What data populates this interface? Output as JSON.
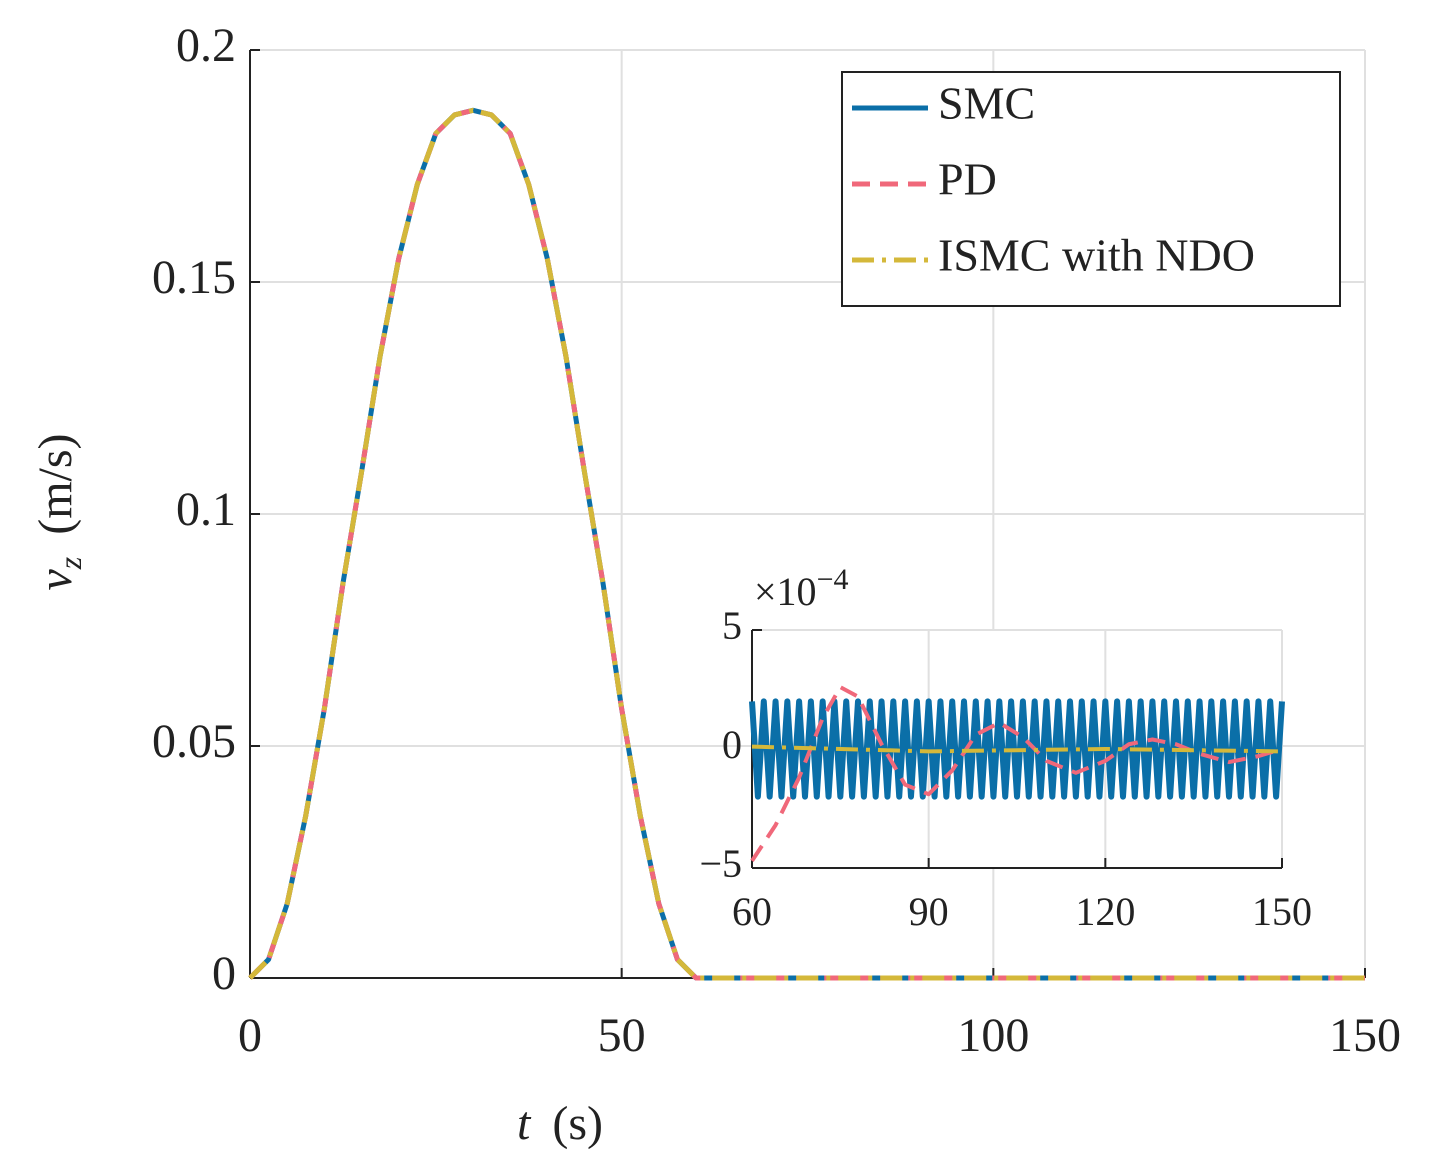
{
  "chart_data": [
    {
      "type": "line",
      "xlabel": {
        "symbol": "t",
        "unit": "(s)"
      },
      "ylabel": {
        "symbol": "v",
        "subscript": "z",
        "unit": "(m/s)"
      },
      "x": [
        0,
        2.5,
        5,
        7.5,
        10,
        12.5,
        15,
        17.5,
        20,
        22.5,
        25,
        27.5,
        30,
        32.5,
        35,
        37.5,
        40,
        42.5,
        45,
        47.5,
        50,
        52.5,
        55,
        57.5,
        60,
        150
      ],
      "series": [
        {
          "name": "SMC",
          "color": "#0b6fa8",
          "dash": "solid",
          "values": [
            0,
            0.004,
            0.016,
            0.035,
            0.058,
            0.085,
            0.109,
            0.134,
            0.155,
            0.171,
            0.182,
            0.186,
            0.187,
            0.186,
            0.182,
            0.171,
            0.155,
            0.134,
            0.109,
            0.085,
            0.058,
            0.035,
            0.016,
            0.004,
            0,
            0
          ]
        },
        {
          "name": "PD",
          "color": "#f0687a",
          "dash": "dashed",
          "values": [
            0,
            0.004,
            0.016,
            0.035,
            0.058,
            0.085,
            0.109,
            0.134,
            0.155,
            0.171,
            0.182,
            0.186,
            0.187,
            0.186,
            0.182,
            0.171,
            0.155,
            0.134,
            0.109,
            0.085,
            0.058,
            0.035,
            0.016,
            0.004,
            0,
            0
          ]
        },
        {
          "name": "ISMC with NDO",
          "color": "#d4b83a",
          "dash": "dashdot",
          "values": [
            0,
            0.004,
            0.016,
            0.035,
            0.058,
            0.085,
            0.109,
            0.134,
            0.155,
            0.171,
            0.182,
            0.186,
            0.187,
            0.186,
            0.182,
            0.171,
            0.155,
            0.134,
            0.109,
            0.085,
            0.058,
            0.035,
            0.016,
            0.004,
            0,
            0
          ]
        }
      ],
      "xlim": [
        0,
        150
      ],
      "xticks": [
        0,
        50,
        100,
        150
      ],
      "ylim": [
        0,
        0.2
      ],
      "yticks": [
        0,
        0.05,
        0.1,
        0.15,
        0.2
      ],
      "grid": true,
      "legend": "northeast"
    },
    {
      "type": "line",
      "y_multiplier": {
        "base": "×10",
        "exponent": "−4"
      },
      "series": [
        {
          "color": "#0b6fa8",
          "dash": "solid",
          "x": [
            60,
            61,
            62,
            63,
            64,
            65,
            66,
            67,
            68,
            69,
            70,
            71,
            72,
            73,
            74,
            75,
            76,
            77,
            78,
            79,
            80,
            81,
            82,
            83,
            84,
            85,
            86,
            87,
            88,
            89,
            90,
            91,
            92,
            93,
            94,
            95,
            96,
            97,
            98,
            99,
            100,
            101,
            102,
            103,
            104,
            105,
            106,
            107,
            108,
            109,
            110,
            111,
            112,
            113,
            114,
            115,
            116,
            117,
            118,
            119,
            120,
            121,
            122,
            123,
            124,
            125,
            126,
            127,
            128,
            129,
            130,
            131,
            132,
            133,
            134,
            135,
            136,
            137,
            138,
            139,
            140,
            141,
            142,
            143,
            144,
            145,
            146,
            147,
            148,
            149,
            150
          ],
          "values": [
            2,
            -2,
            2,
            -2,
            2,
            -2,
            2,
            -2,
            2,
            -2,
            2,
            -2,
            2,
            -2,
            2,
            -2,
            2,
            -2,
            2,
            -2,
            2,
            -2,
            2,
            -2,
            2,
            -2,
            2,
            -2,
            2,
            -2,
            2,
            -2,
            2,
            -2,
            2,
            -2,
            2,
            -2,
            2,
            -2,
            2,
            -2,
            2,
            -2,
            2,
            -2,
            2,
            -2,
            2,
            -2,
            2,
            -2,
            2,
            -2,
            2,
            -2,
            2,
            -2,
            2,
            -2,
            2,
            -2,
            2,
            -2,
            2,
            -2,
            2,
            -2,
            2,
            -2,
            2,
            -2,
            2,
            -2,
            2,
            -2,
            2,
            -2,
            2,
            -2,
            2,
            -2,
            2,
            -2,
            2,
            -2,
            2,
            -2,
            2,
            -2,
            2
          ]
        },
        {
          "color": "#f0687a",
          "dash": "dashed",
          "x": [
            60,
            64,
            68,
            72,
            75,
            78,
            82,
            86,
            90,
            94,
            98,
            102,
            106,
            110,
            115,
            120,
            124,
            128,
            132,
            136,
            141,
            146,
            150
          ],
          "values": [
            -4.7,
            -3.2,
            -1.2,
            1.3,
            2.6,
            2.2,
            0.2,
            -1.5,
            -1.9,
            -0.9,
            0.6,
            1.1,
            0.5,
            -0.5,
            -1.0,
            -0.5,
            0.2,
            0.4,
            0.2,
            -0.2,
            -0.55,
            -0.3,
            0
          ]
        },
        {
          "color": "#d4b83a",
          "dash": "dashdot",
          "x": [
            60,
            90,
            120,
            150
          ],
          "values": [
            0.1,
            -0.1,
            0,
            -0.1
          ]
        }
      ],
      "xlim": [
        60,
        150
      ],
      "xticks": [
        60,
        90,
        120,
        150
      ],
      "ylim": [
        -5,
        5
      ],
      "yticks": [
        {
          "value": -5,
          "label": "−5"
        },
        0,
        5
      ],
      "grid": true
    }
  ]
}
